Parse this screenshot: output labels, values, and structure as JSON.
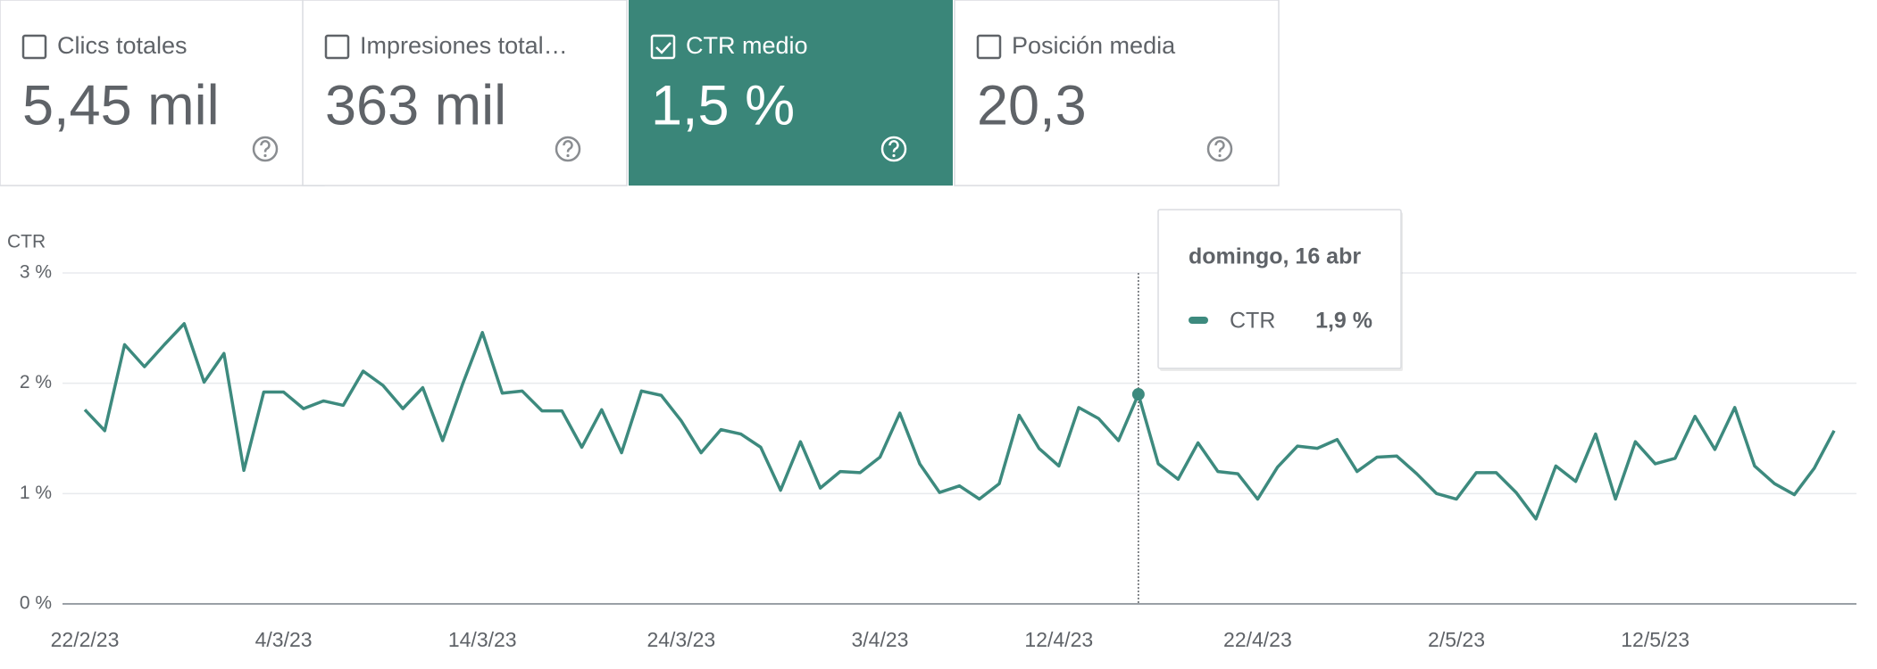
{
  "cards": [
    {
      "label": "Clics totales",
      "value": "5,45 mil",
      "checked": false
    },
    {
      "label": "Impresiones total…",
      "value": "363 mil",
      "checked": false
    },
    {
      "label": "CTR medio",
      "value": "1,5 %",
      "checked": true
    },
    {
      "label": "Posición media",
      "value": "20,3",
      "checked": false
    }
  ],
  "chart_data": {
    "type": "line",
    "y_label": "CTR",
    "x": [
      "22/2/23",
      "23/2/23",
      "24/2/23",
      "25/2/23",
      "26/2/23",
      "27/2/23",
      "28/2/23",
      "1/3/23",
      "2/3/23",
      "3/3/23",
      "4/3/23",
      "5/3/23",
      "6/3/23",
      "7/3/23",
      "8/3/23",
      "9/3/23",
      "10/3/23",
      "11/3/23",
      "12/3/23",
      "13/3/23",
      "14/3/23",
      "15/3/23",
      "16/3/23",
      "17/3/23",
      "18/3/23",
      "19/3/23",
      "20/3/23",
      "21/3/23",
      "22/3/23",
      "23/3/23",
      "24/3/23",
      "25/3/23",
      "26/3/23",
      "27/3/23",
      "28/3/23",
      "29/3/23",
      "30/3/23",
      "31/3/23",
      "1/4/23",
      "2/4/23",
      "3/4/23",
      "4/4/23",
      "5/4/23",
      "6/4/23",
      "7/4/23",
      "8/4/23",
      "9/4/23",
      "10/4/23",
      "11/4/23",
      "12/4/23",
      "13/4/23",
      "14/4/23",
      "15/4/23",
      "16/4/23",
      "17/4/23",
      "18/4/23",
      "19/4/23",
      "20/4/23",
      "21/4/23",
      "22/4/23",
      "23/4/23",
      "24/4/23",
      "25/4/23",
      "26/4/23",
      "27/4/23",
      "28/4/23",
      "29/4/23",
      "30/4/23",
      "1/5/23",
      "2/5/23",
      "3/5/23",
      "4/5/23",
      "5/5/23",
      "6/5/23",
      "7/5/23",
      "8/5/23",
      "9/5/23",
      "10/5/23",
      "11/5/23",
      "12/5/23",
      "13/5/23",
      "14/5/23",
      "15/5/23",
      "16/5/23",
      "17/5/23",
      "18/5/23",
      "19/5/23",
      "20/5/23",
      "21/5/23"
    ],
    "series": [
      {
        "name": "CTR",
        "color": "#3d8a7e",
        "values": [
          1.76,
          1.57,
          2.35,
          2.15,
          2.35,
          2.54,
          2.01,
          2.27,
          1.21,
          1.92,
          1.92,
          1.77,
          1.84,
          1.8,
          2.11,
          1.98,
          1.77,
          1.96,
          1.48,
          1.99,
          2.46,
          1.91,
          1.93,
          1.75,
          1.75,
          1.42,
          1.76,
          1.37,
          1.93,
          1.89,
          1.66,
          1.37,
          1.58,
          1.54,
          1.42,
          1.03,
          1.47,
          1.05,
          1.2,
          1.19,
          1.33,
          1.73,
          1.27,
          1.01,
          1.07,
          0.95,
          1.09,
          1.71,
          1.41,
          1.25,
          1.78,
          1.68,
          1.48,
          1.9,
          1.27,
          1.13,
          1.46,
          1.2,
          1.18,
          0.95,
          1.24,
          1.43,
          1.41,
          1.49,
          1.2,
          1.33,
          1.34,
          1.18,
          1.0,
          0.95,
          1.19,
          1.19,
          1.01,
          0.77,
          1.25,
          1.11,
          1.54,
          0.95,
          1.47,
          1.27,
          1.32,
          1.7,
          1.4,
          1.78,
          1.25,
          1.09,
          0.99,
          1.23,
          1.57
        ]
      }
    ],
    "xticks": [
      "22/2/23",
      "4/3/23",
      "14/3/23",
      "24/3/23",
      "3/4/23",
      "12/4/23",
      "22/4/23",
      "2/5/23",
      "12/5/23"
    ],
    "ylim": [
      0,
      3
    ],
    "yticks": [
      {
        "value": 0,
        "label": "0 %"
      },
      {
        "value": 1,
        "label": "1 %"
      },
      {
        "value": 2,
        "label": "2 %"
      },
      {
        "value": 3,
        "label": "3 %"
      }
    ],
    "grid": true
  },
  "tooltip": {
    "x": "16/4/23",
    "date": "domingo, 16 abr",
    "name": "CTR",
    "value_label": "1,9 %"
  }
}
